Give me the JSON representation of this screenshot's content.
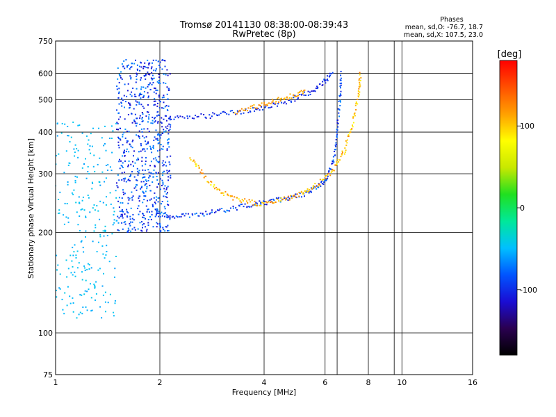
{
  "chart_data": {
    "type": "scatter",
    "title": "Tromsø 20141130 08:38:00-08:39:43",
    "subtitle": "RwPretec (8p)",
    "xlabel": "Frequency [MHz]",
    "ylabel": "Stationary phase Virtual Height [km]",
    "x_scale": "log",
    "y_scale": "log",
    "xlim": [
      1,
      16
    ],
    "ylim": [
      75,
      750
    ],
    "x_ticks": [
      1,
      2,
      4,
      6,
      8,
      10,
      16
    ],
    "x_minor_gridlines": [
      6.5,
      9.5
    ],
    "y_ticks": [
      75,
      100,
      200,
      300,
      400,
      500,
      600,
      750
    ],
    "grid": true,
    "phase_stats": {
      "heading": "Phases",
      "line1": "mean, sd,O: -76.7, 18.7",
      "line2": "mean, sd,X: 107.5, 23.0"
    },
    "colorbar": {
      "label": "[deg]",
      "min": -180,
      "max": 180,
      "ticks": [
        100,
        0,
        -100
      ],
      "colormap": [
        "#000000",
        "#2a0050",
        "#1a0dd4",
        "#0055ff",
        "#00c0ff",
        "#00e89a",
        "#20e020",
        "#c8e800",
        "#ffff00",
        "#ffa000",
        "#ff5000",
        "#ff0000"
      ]
    },
    "traces": [
      {
        "name": "",
        "mode": "O",
        "points": [
          [
            1.95,
            228
          ],
          [
            2.2,
            224
          ],
          [
            2.6,
            226
          ],
          [
            3.0,
            232
          ],
          [
            3.5,
            240
          ],
          [
            4.0,
            246
          ],
          [
            4.6,
            252
          ],
          [
            5.2,
            260
          ],
          [
            5.7,
            272
          ],
          [
            6.1,
            292
          ],
          [
            6.35,
            330
          ],
          [
            6.5,
            400
          ],
          [
            6.62,
            500
          ],
          [
            6.7,
            610
          ]
        ],
        "phase_range": [
          -115,
          -65
        ]
      },
      {
        "name": "",
        "mode": "X",
        "points": [
          [
            2.45,
            338
          ],
          [
            2.7,
            292
          ],
          [
            3.0,
            266
          ],
          [
            3.4,
            250
          ],
          [
            3.9,
            243
          ],
          [
            4.5,
            250
          ],
          [
            5.1,
            262
          ],
          [
            5.7,
            278
          ],
          [
            6.3,
            306
          ],
          [
            6.8,
            350
          ],
          [
            7.2,
            420
          ],
          [
            7.5,
            520
          ],
          [
            7.6,
            600
          ]
        ],
        "phase_range": [
          80,
          135
        ]
      },
      {
        "name": "",
        "mode": "O-upper",
        "points": [
          [
            1.9,
            445
          ],
          [
            2.3,
            442
          ],
          [
            2.8,
            448
          ],
          [
            3.3,
            458
          ],
          [
            3.9,
            472
          ],
          [
            4.6,
            492
          ],
          [
            5.3,
            520
          ],
          [
            5.9,
            558
          ],
          [
            6.3,
            600
          ]
        ],
        "phase_range": [
          -115,
          -85
        ]
      },
      {
        "name": "",
        "mode": "X-upper",
        "points": [
          [
            3.3,
            460
          ],
          [
            3.8,
            478
          ],
          [
            4.3,
            496
          ],
          [
            4.8,
            512
          ],
          [
            5.3,
            530
          ]
        ],
        "phase_range": [
          100,
          130
        ]
      },
      {
        "name": "",
        "mode": "spread-F cloud",
        "region": {
          "x": [
            1.5,
            2.15
          ],
          "y": [
            200,
            660
          ]
        },
        "phase_range": [
          -120,
          -60
        ]
      },
      {
        "name": "",
        "mode": "low-frequency scatter",
        "region": {
          "x": [
            1.0,
            1.5
          ],
          "y": [
            110,
            430
          ]
        },
        "phase_range": [
          -60,
          -40
        ]
      }
    ]
  }
}
